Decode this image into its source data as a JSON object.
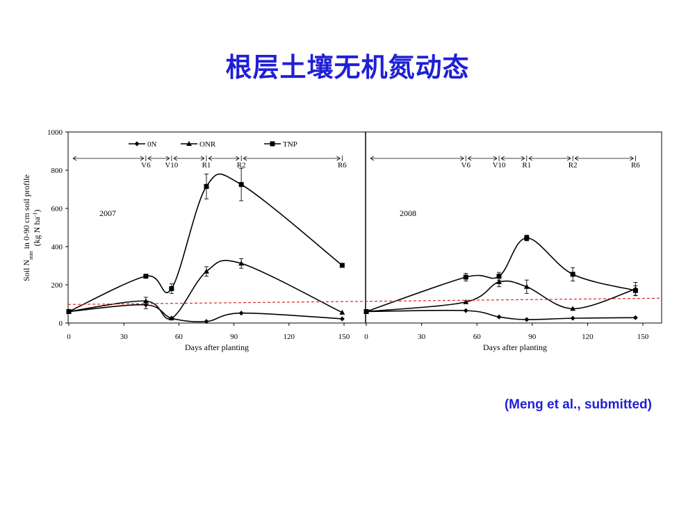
{
  "slide": {
    "title": "根层土壤无机氮动态",
    "citation": "(Meng et al., submitted)"
  },
  "chart_data": [
    {
      "type": "line",
      "panel": "2007",
      "ylabel_line1": "Soil N",
      "ylabel_sub": "min",
      "ylabel_line1_rest": " in 0-90 cm soil profile",
      "ylabel_line2": "(kg N ha",
      "ylabel_sup": "-1",
      "ylabel_line2_end": ")",
      "xlabel": "Days after planting",
      "xlim": [
        0,
        150
      ],
      "ylim": [
        0,
        1000
      ],
      "xticks": [
        0,
        30,
        60,
        90,
        120,
        150
      ],
      "yticks": [
        0,
        200,
        400,
        600,
        800,
        1000
      ],
      "stages": [
        {
          "label": "V6",
          "x": 42
        },
        {
          "label": "V10",
          "x": 56
        },
        {
          "label": "R1",
          "x": 75
        },
        {
          "label": "R2",
          "x": 94
        },
        {
          "label": "R6",
          "x": 149
        }
      ],
      "reference_line": {
        "y_start": 97,
        "y_end": 130,
        "color": "#e02020",
        "style": "dashed"
      },
      "series": [
        {
          "name": "0N",
          "marker": "diamond",
          "x": [
            0,
            42,
            56,
            75,
            94,
            149
          ],
          "y": [
            60,
            95,
            25,
            8,
            52,
            22
          ],
          "err": [
            0,
            20,
            0,
            0,
            0,
            0
          ]
        },
        {
          "name": "ONR",
          "marker": "triangle",
          "x": [
            0,
            42,
            56,
            75,
            94,
            149
          ],
          "y": [
            60,
            115,
            25,
            270,
            312,
            55
          ],
          "err": [
            0,
            20,
            0,
            25,
            25,
            0
          ]
        },
        {
          "name": "TNP",
          "marker": "square",
          "x": [
            0,
            42,
            56,
            75,
            94,
            149
          ],
          "y": [
            60,
            245,
            180,
            715,
            725,
            302
          ],
          "err": [
            0,
            0,
            25,
            65,
            85,
            0
          ]
        }
      ]
    },
    {
      "type": "line",
      "panel": "2008",
      "xlabel": "Days after planting",
      "xlim": [
        0,
        150
      ],
      "ylim": [
        0,
        1000
      ],
      "xticks": [
        0,
        30,
        60,
        90,
        120,
        150
      ],
      "stages": [
        {
          "label": "V6",
          "x": 54
        },
        {
          "label": "V10",
          "x": 72
        },
        {
          "label": "R1",
          "x": 87
        },
        {
          "label": "R2",
          "x": 112
        },
        {
          "label": "R6",
          "x": 146
        }
      ],
      "series": [
        {
          "name": "0N",
          "marker": "diamond",
          "x": [
            0,
            54,
            72,
            87,
            112,
            146
          ],
          "y": [
            60,
            65,
            32,
            18,
            25,
            28
          ],
          "err": [
            0,
            0,
            0,
            0,
            0,
            0
          ]
        },
        {
          "name": "ONR",
          "marker": "triangle",
          "x": [
            0,
            54,
            72,
            87,
            112,
            146
          ],
          "y": [
            60,
            110,
            215,
            190,
            75,
            178
          ],
          "err": [
            0,
            0,
            25,
            35,
            0,
            35
          ]
        },
        {
          "name": "TNP",
          "marker": "square",
          "x": [
            0,
            54,
            72,
            87,
            112,
            146
          ],
          "y": [
            60,
            240,
            245,
            445,
            255,
            170
          ],
          "err": [
            0,
            20,
            20,
            15,
            35,
            25
          ]
        }
      ]
    }
  ]
}
